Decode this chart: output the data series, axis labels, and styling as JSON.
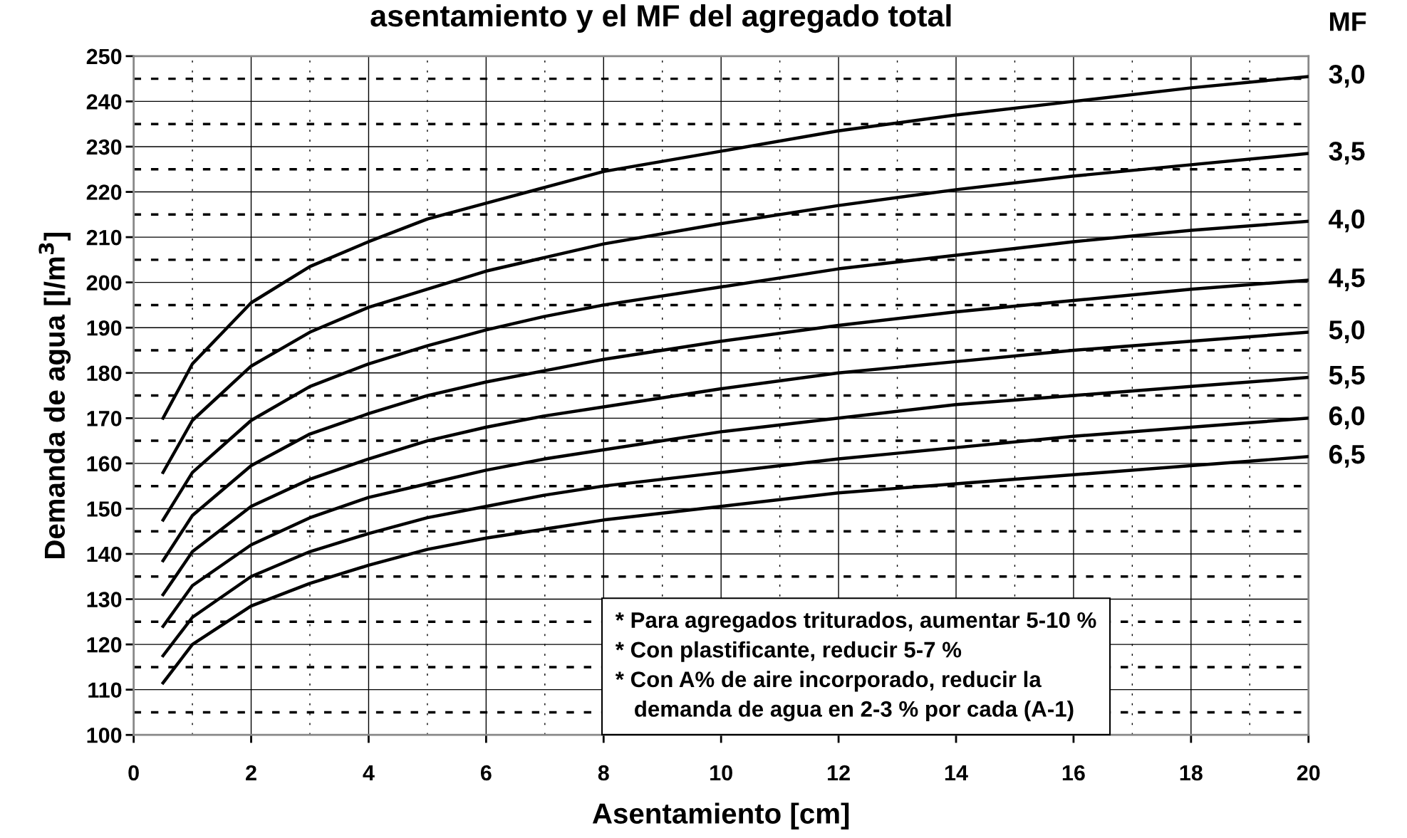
{
  "chart_data": {
    "type": "line",
    "title": "asentamiento y el MF del agregado total",
    "xlabel": "Asentamiento [cm]",
    "ylabel": "Demanda de agua [l/m$^{3}$]",
    "legend_title": "MF",
    "x": [
      0.5,
      1,
      2,
      3,
      4,
      5,
      6,
      7,
      8,
      10,
      12,
      14,
      16,
      18,
      20
    ],
    "series": [
      {
        "name": "3,0",
        "color": "#000000",
        "values": [
          170,
          182,
          195.5,
          203.5,
          209,
          214,
          217.5,
          221,
          224.5,
          229,
          233.5,
          237,
          240,
          243,
          245.5
        ]
      },
      {
        "name": "3,5",
        "color": "#000000",
        "values": [
          158,
          169.5,
          181.5,
          189,
          194.5,
          198.5,
          202.5,
          205.5,
          208.5,
          213,
          217,
          220.5,
          223.5,
          226,
          228.5
        ]
      },
      {
        "name": "4,0",
        "color": "#000000",
        "values": [
          147.5,
          158,
          169.5,
          177,
          182,
          186,
          189.5,
          192.5,
          195,
          199,
          203,
          206,
          209,
          211.5,
          213.5
        ]
      },
      {
        "name": "4,5",
        "color": "#000000",
        "values": [
          138.5,
          148.5,
          159.5,
          166.5,
          171,
          175,
          178,
          180.5,
          183,
          187,
          190.5,
          193.5,
          196,
          198.5,
          200.5
        ]
      },
      {
        "name": "5,0",
        "color": "#000000",
        "values": [
          131,
          140.5,
          150.5,
          156.5,
          161,
          165,
          168,
          170.5,
          172.5,
          176.5,
          180,
          182.5,
          185,
          187,
          189
        ]
      },
      {
        "name": "5,5",
        "color": "#000000",
        "values": [
          124,
          133,
          142,
          148,
          152.5,
          155.5,
          158.5,
          161,
          163,
          167,
          170,
          173,
          175,
          177,
          179
        ]
      },
      {
        "name": "6,0",
        "color": "#000000",
        "values": [
          117.5,
          126,
          135,
          140.5,
          144.5,
          148,
          150.5,
          153,
          155,
          158,
          161,
          163.5,
          166,
          168,
          170
        ]
      },
      {
        "name": "6,5",
        "color": "#000000",
        "values": [
          111.5,
          120,
          128.5,
          133.5,
          137.5,
          141,
          143.5,
          145.5,
          147.5,
          150.5,
          153.5,
          155.5,
          157.5,
          159.5,
          161.5
        ]
      }
    ],
    "xlim": [
      0,
      20
    ],
    "ylim": [
      100,
      250
    ],
    "xticks": [
      0,
      {
        "value": 1,
        "label": null
      },
      2,
      {
        "value": 3,
        "label": null
      },
      4,
      {
        "value": 5,
        "label": null
      },
      6,
      {
        "value": 7,
        "label": null
      },
      8,
      {
        "value": 9,
        "label": null
      },
      10,
      {
        "value": 11,
        "label": null
      },
      12,
      {
        "value": 13,
        "label": null
      },
      14,
      {
        "value": 15,
        "label": null
      },
      16,
      {
        "value": 17,
        "label": null
      },
      18,
      {
        "value": 19,
        "label": null
      },
      20
    ],
    "yticks": [
      100,
      {
        "value": 105,
        "label": null
      },
      110,
      {
        "value": 115,
        "label": null
      },
      120,
      {
        "value": 125,
        "label": null
      },
      130,
      {
        "value": 135,
        "label": null
      },
      140,
      {
        "value": 145,
        "label": null
      },
      150,
      {
        "value": 155,
        "label": null
      },
      160,
      {
        "value": 165,
        "label": null
      },
      170,
      {
        "value": 175,
        "label": null
      },
      180,
      {
        "value": 185,
        "label": null
      },
      190,
      {
        "value": 195,
        "label": null
      },
      200,
      {
        "value": 205,
        "label": null
      },
      210,
      {
        "value": 215,
        "label": null
      },
      220,
      {
        "value": 225,
        "label": null
      },
      230,
      {
        "value": 235,
        "label": null
      },
      240,
      {
        "value": 245,
        "label": null
      },
      250
    ],
    "grid": true,
    "marker": "none",
    "line_style": "solid",
    "annotations": [
      "* Para agregados triturados, aumentar 5-10 %\n* Con plastificante, reducir 5-7 %\n* Con A% de aire incorporado, reducir la\n   demanda de agua en 2-3 % por cada (A-1)"
    ]
  }
}
